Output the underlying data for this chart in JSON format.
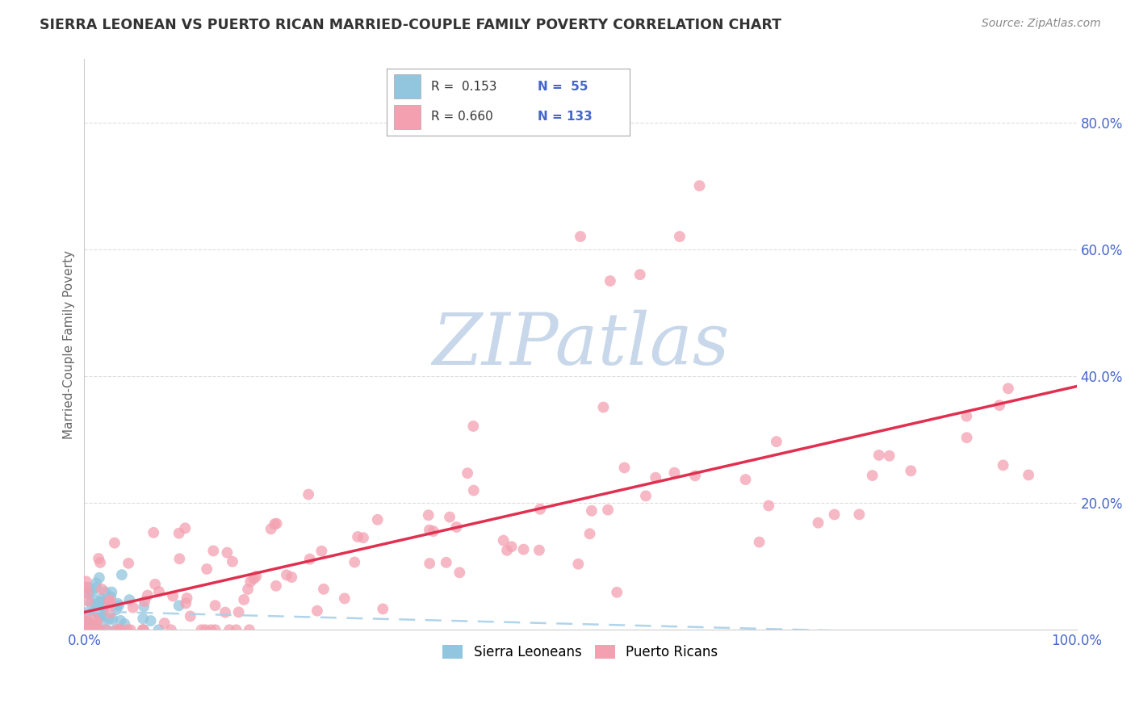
{
  "title": "SIERRA LEONEAN VS PUERTO RICAN MARRIED-COUPLE FAMILY POVERTY CORRELATION CHART",
  "source": "Source: ZipAtlas.com",
  "ylabel": "Married-Couple Family Poverty",
  "xlim": [
    0,
    1.0
  ],
  "ylim": [
    0,
    0.9
  ],
  "color_blue": "#92C5DE",
  "color_pink": "#F4A0B0",
  "color_line_blue": "#A8D0E8",
  "color_line_pink": "#E03050",
  "watermark": "ZIPatlas",
  "watermark_color": "#C8D8EA",
  "legend_r1": "R =  0.153",
  "legend_n1": "N =  55",
  "legend_r2": "R = 0.660",
  "legend_n2": "N = 133",
  "title_color": "#333333",
  "source_color": "#888888",
  "tick_color": "#4466CC",
  "ylabel_color": "#666666",
  "grid_color": "#DDDDDD"
}
